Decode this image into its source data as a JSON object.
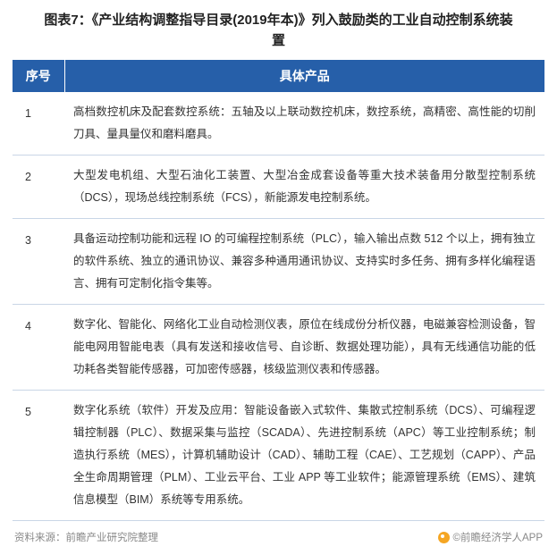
{
  "title": "图表7：《产业结构调整指导目录(2019年本)》列入鼓励类的工业自动控制系统装置",
  "table": {
    "header_bg": "#265fa9",
    "header_color": "#ffffff",
    "border_color": "#c9d6e6",
    "columns": [
      "序号",
      "具体产品"
    ],
    "rows": [
      {
        "num": "1",
        "text": "高档数控机床及配套数控系统：五轴及以上联动数控机床，数控系统，高精密、高性能的切削刀具、量具量仪和磨料磨具。"
      },
      {
        "num": "2",
        "text": "大型发电机组、大型石油化工装置、大型冶金成套设备等重大技术装备用分散型控制系统（DCS），现场总线控制系统（FCS），新能源发电控制系统。"
      },
      {
        "num": "3",
        "text": "具备运动控制功能和远程 IO 的可编程控制系统（PLC），输入输出点数 512 个以上，拥有独立的软件系统、独立的通讯协议、兼容多种通用通讯协议、支持实时多任务、拥有多样化编程语言、拥有可定制化指令集等。"
      },
      {
        "num": "4",
        "text": "数字化、智能化、网络化工业自动检测仪表，原位在线成份分析仪器，电磁兼容检测设备，智能电网用智能电表（具有发送和接收信号、自诊断、数据处理功能），具有无线通信功能的低功耗各类智能传感器，可加密传感器，核级监测仪表和传感器。"
      },
      {
        "num": "5",
        "text": "数字化系统（软件）开发及应用：智能设备嵌入式软件、集散式控制系统（DCS）、可编程逻辑控制器（PLC）、数据采集与监控（SCADA）、先进控制系统（APC）等工业控制系统；制造执行系统（MES），计算机辅助设计（CAD）、辅助工程（CAE）、工艺规划（CAPP）、产品全生命周期管理（PLM）、工业云平台、工业 APP 等工业软件；能源管理系统（EMS）、建筑信息模型（BIM）系统等专用系统。"
      }
    ]
  },
  "footer": {
    "source_label": "资料来源：",
    "source_value": "前瞻产业研究院整理",
    "copyright": "©前瞻经济学人APP"
  }
}
